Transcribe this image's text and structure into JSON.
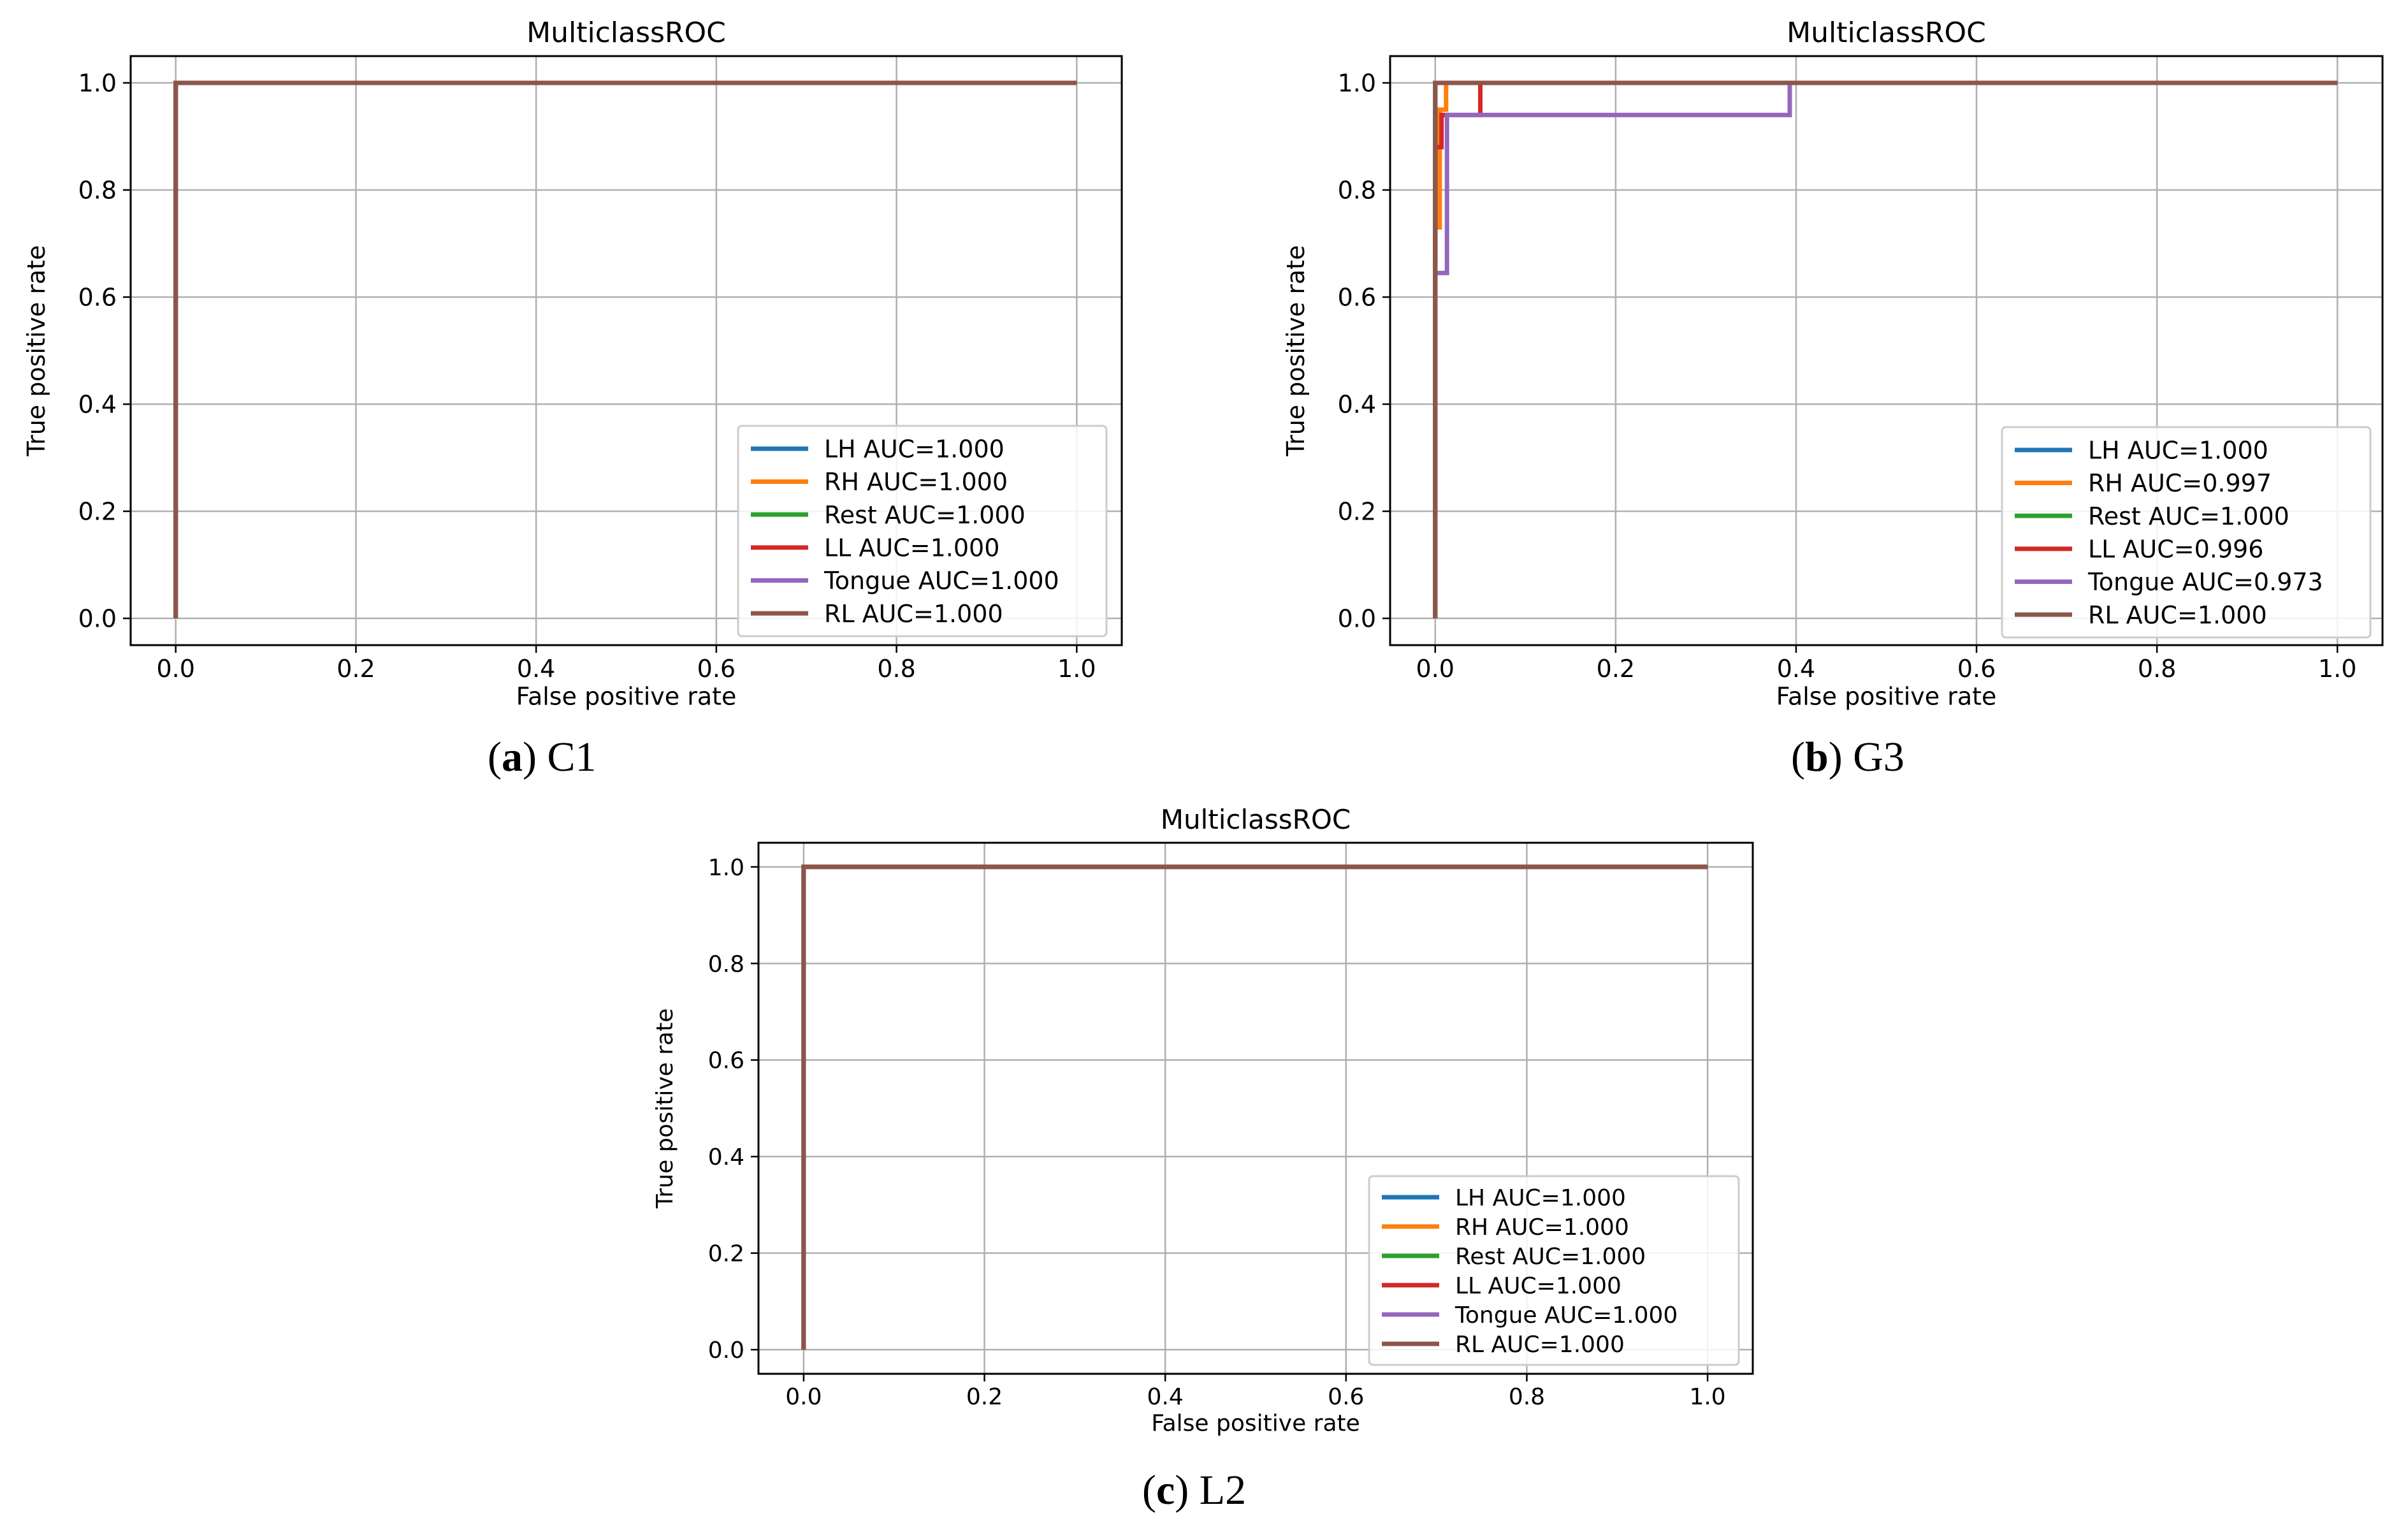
{
  "chart_data": [
    {
      "type": "line",
      "panel": "a",
      "title": "MulticlassROC",
      "xlabel": "False positive rate",
      "ylabel": "True positive rate",
      "xlim": [
        -0.05,
        1.05
      ],
      "ylim": [
        -0.05,
        1.05
      ],
      "xticks": [
        "0.0",
        "0.2",
        "0.4",
        "0.6",
        "0.8",
        "1.0"
      ],
      "yticks": [
        "0.0",
        "0.2",
        "0.4",
        "0.6",
        "0.8",
        "1.0"
      ],
      "grid": true,
      "legend_position": "lower-right",
      "caption": {
        "letter": "a",
        "text": "C1"
      },
      "series": [
        {
          "name": "LH AUC=1.000",
          "color": "#1f77b4",
          "x": [
            0,
            0,
            1
          ],
          "y": [
            0,
            1,
            1
          ]
        },
        {
          "name": "RH AUC=1.000",
          "color": "#ff7f0e",
          "x": [
            0,
            0,
            1
          ],
          "y": [
            0,
            1,
            1
          ]
        },
        {
          "name": "Rest AUC=1.000",
          "color": "#2ca02c",
          "x": [
            0,
            0,
            1
          ],
          "y": [
            0,
            1,
            1
          ]
        },
        {
          "name": "LL AUC=1.000",
          "color": "#d62728",
          "x": [
            0,
            0,
            1
          ],
          "y": [
            0,
            1,
            1
          ]
        },
        {
          "name": "Tongue AUC=1.000",
          "color": "#9467bd",
          "x": [
            0,
            0,
            1
          ],
          "y": [
            0,
            1,
            1
          ]
        },
        {
          "name": "RL AUC=1.000",
          "color": "#8c564b",
          "x": [
            0,
            0,
            1
          ],
          "y": [
            0,
            1,
            1
          ]
        }
      ]
    },
    {
      "type": "line",
      "panel": "b",
      "title": "MulticlassROC",
      "xlabel": "False positive rate",
      "ylabel": "True positive rate",
      "xlim": [
        -0.05,
        1.05
      ],
      "ylim": [
        -0.05,
        1.05
      ],
      "xticks": [
        "0.0",
        "0.2",
        "0.4",
        "0.6",
        "0.8",
        "1.0"
      ],
      "yticks": [
        "0.0",
        "0.2",
        "0.4",
        "0.6",
        "0.8",
        "1.0"
      ],
      "grid": true,
      "legend_position": "lower-right",
      "caption": {
        "letter": "b",
        "text": "G3"
      },
      "series": [
        {
          "name": "LH AUC=1.000",
          "color": "#1f77b4",
          "x": [
            0,
            0,
            1
          ],
          "y": [
            0,
            1,
            1
          ]
        },
        {
          "name": "RH AUC=0.997",
          "color": "#ff7f0e",
          "x": [
            0,
            0,
            0.005,
            0.005,
            0.012,
            0.012,
            1
          ],
          "y": [
            0,
            0.73,
            0.73,
            0.95,
            0.95,
            1,
            1
          ]
        },
        {
          "name": "Rest AUC=1.000",
          "color": "#2ca02c",
          "x": [
            0,
            0,
            1
          ],
          "y": [
            0,
            1,
            1
          ]
        },
        {
          "name": "LL AUC=0.996",
          "color": "#d62728",
          "x": [
            0,
            0,
            0.007,
            0.007,
            0.05,
            0.05,
            1
          ],
          "y": [
            0,
            0.88,
            0.88,
            0.94,
            0.94,
            1,
            1
          ]
        },
        {
          "name": "Tongue AUC=0.973",
          "color": "#9467bd",
          "x": [
            0,
            0,
            0.005,
            0.005,
            0.013,
            0.013,
            0.393,
            0.393,
            1
          ],
          "y": [
            0,
            0.645,
            0.645,
            0.645,
            0.645,
            0.94,
            0.94,
            1,
            1
          ]
        },
        {
          "name": "RL AUC=1.000",
          "color": "#8c564b",
          "x": [
            0,
            0,
            1
          ],
          "y": [
            0,
            1,
            1
          ]
        }
      ]
    },
    {
      "type": "line",
      "panel": "c",
      "title": "MulticlassROC",
      "xlabel": "False positive rate",
      "ylabel": "True positive rate",
      "xlim": [
        -0.05,
        1.05
      ],
      "ylim": [
        -0.05,
        1.05
      ],
      "xticks": [
        "0.0",
        "0.2",
        "0.4",
        "0.6",
        "0.8",
        "1.0"
      ],
      "yticks": [
        "0.0",
        "0.2",
        "0.4",
        "0.6",
        "0.8",
        "1.0"
      ],
      "grid": true,
      "legend_position": "lower-right",
      "caption": {
        "letter": "c",
        "text": "L2"
      },
      "series": [
        {
          "name": "LH AUC=1.000",
          "color": "#1f77b4",
          "x": [
            0,
            0,
            1
          ],
          "y": [
            0,
            1,
            1
          ]
        },
        {
          "name": "RH AUC=1.000",
          "color": "#ff7f0e",
          "x": [
            0,
            0,
            1
          ],
          "y": [
            0,
            1,
            1
          ]
        },
        {
          "name": "Rest AUC=1.000",
          "color": "#2ca02c",
          "x": [
            0,
            0,
            1
          ],
          "y": [
            0,
            1,
            1
          ]
        },
        {
          "name": "LL AUC=1.000",
          "color": "#d62728",
          "x": [
            0,
            0,
            1
          ],
          "y": [
            0,
            1,
            1
          ]
        },
        {
          "name": "Tongue AUC=1.000",
          "color": "#9467bd",
          "x": [
            0,
            0,
            1
          ],
          "y": [
            0,
            1,
            1
          ]
        },
        {
          "name": "RL AUC=1.000",
          "color": "#8c564b",
          "x": [
            0,
            0,
            1
          ],
          "y": [
            0,
            1,
            1
          ]
        }
      ]
    }
  ]
}
